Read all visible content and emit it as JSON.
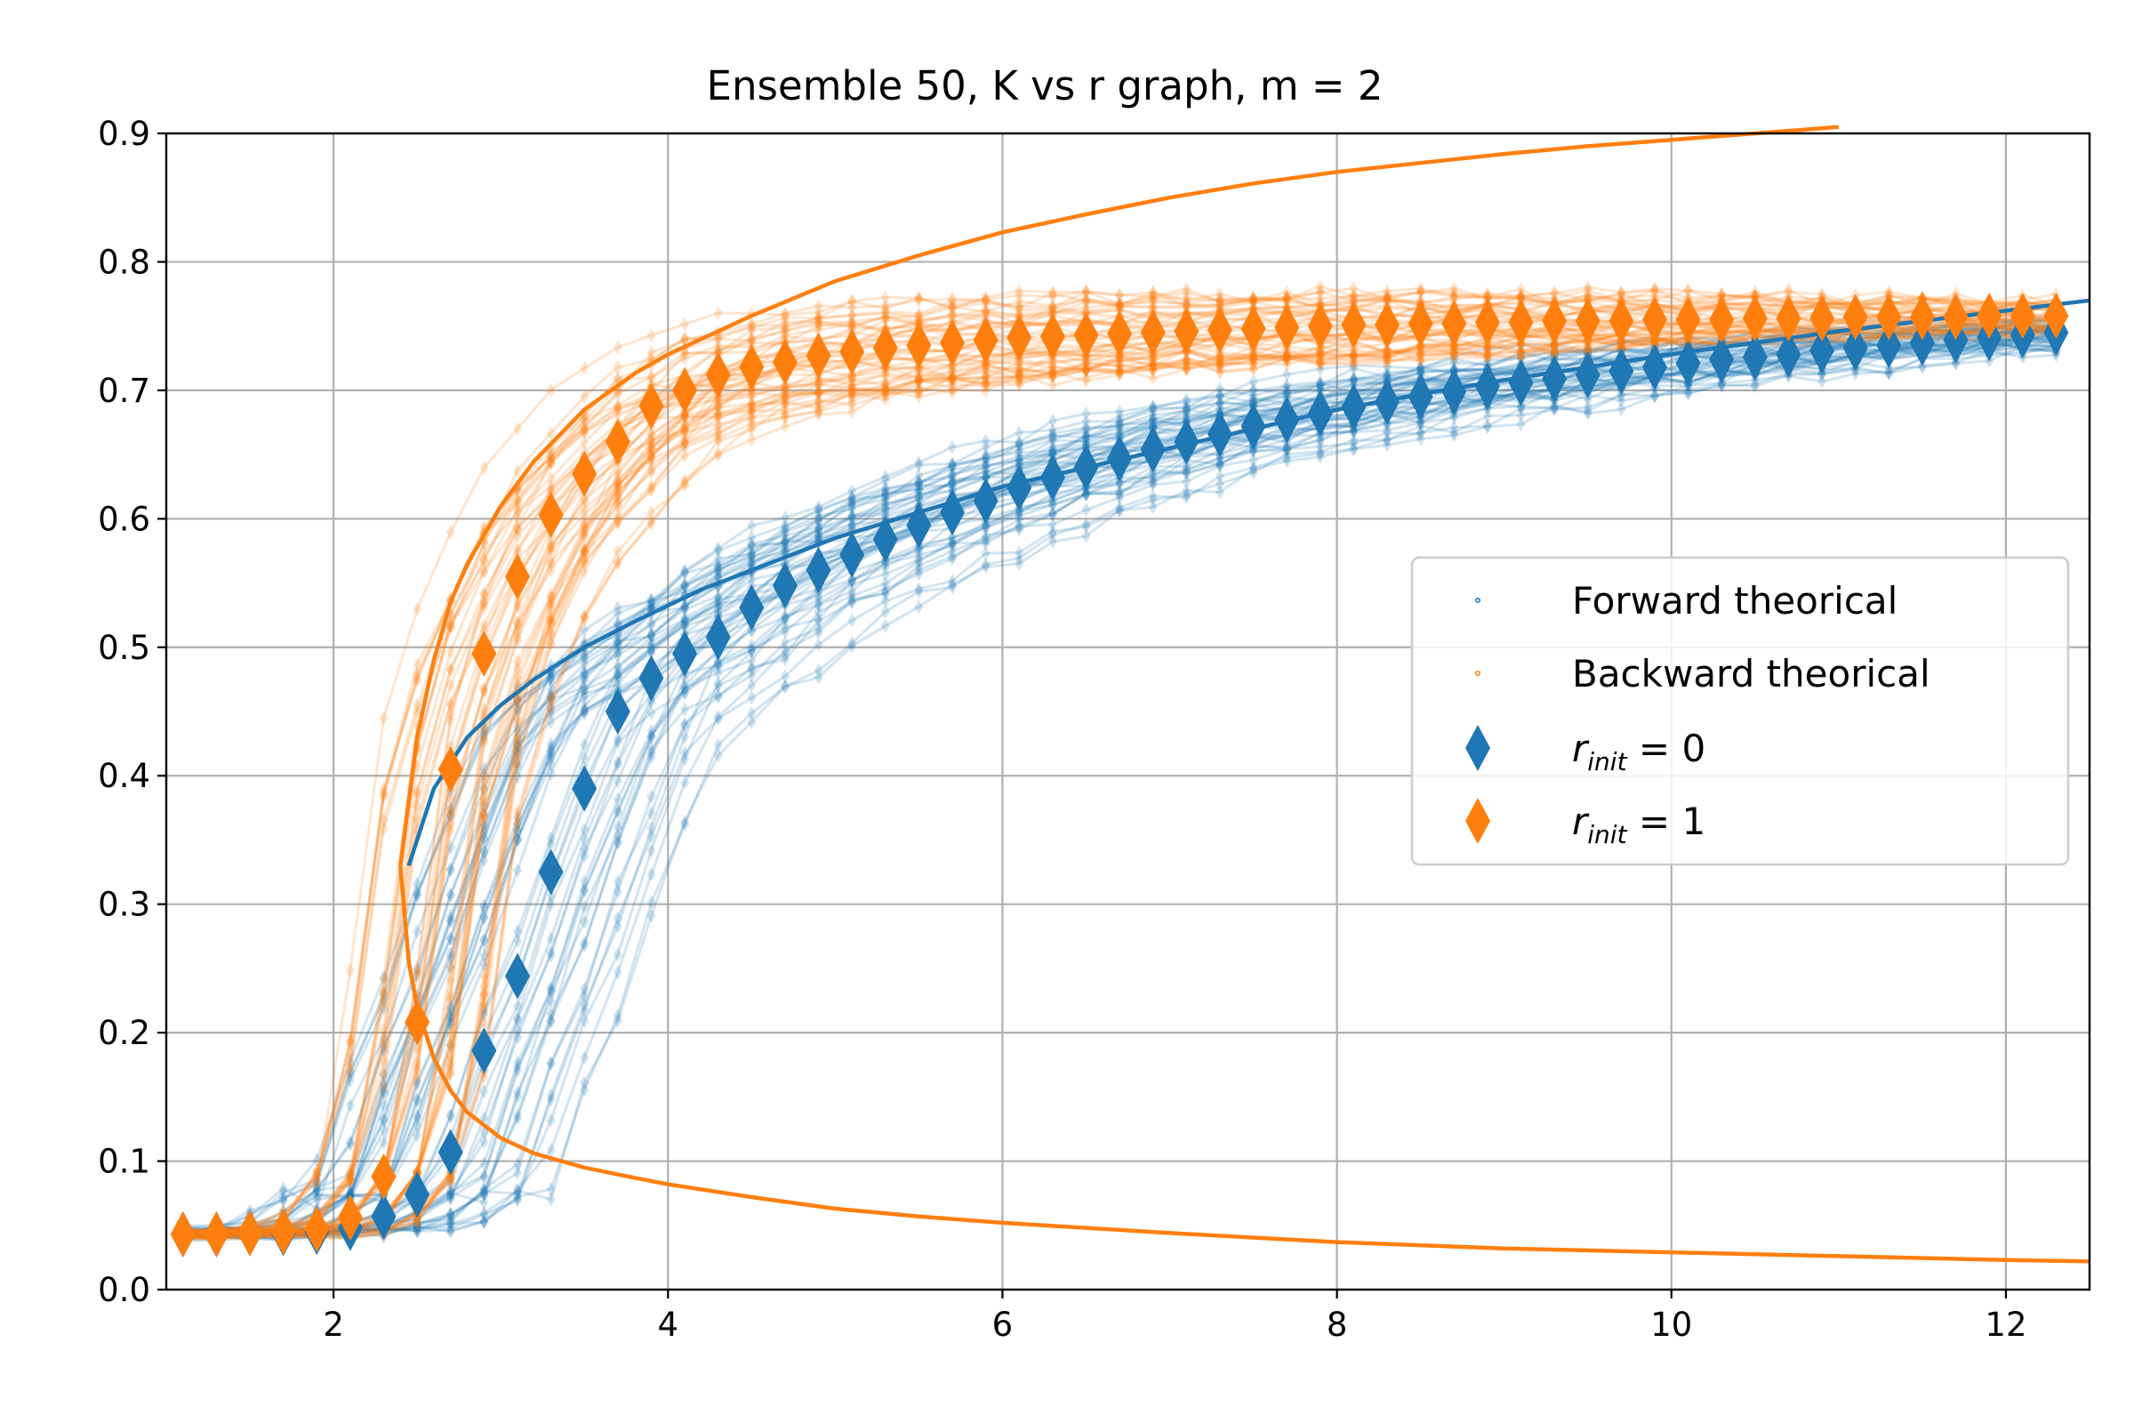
{
  "chart_data": {
    "type": "line",
    "title": "Ensemble 50, K vs r graph, m = 2",
    "xlabel": "",
    "ylabel": "",
    "xlim": [
      1,
      12.5
    ],
    "ylim": [
      0,
      0.9
    ],
    "xticks": [
      "2",
      "4",
      "6",
      "8",
      "10",
      "12"
    ],
    "yticks": [
      "0.0",
      "0.1",
      "0.2",
      "0.3",
      "0.4",
      "0.5",
      "0.6",
      "0.7",
      "0.8",
      "0.9"
    ],
    "grid": true,
    "legend_position": "center-right",
    "colors": {
      "forward": "#1f77b4",
      "backward": "#ff7f0e"
    },
    "legend": [
      {
        "label": "Forward theorical",
        "marker": "dot",
        "color": "#1f77b4"
      },
      {
        "label": "Backward theorical",
        "marker": "dot",
        "color": "#ff7f0e"
      },
      {
        "label_base": "r",
        "label_sub": "init",
        "label_tail": " = 0",
        "marker": "diamond",
        "color": "#1f77b4"
      },
      {
        "label_base": "r",
        "label_sub": "init",
        "label_tail": " = 1",
        "marker": "diamond",
        "color": "#ff7f0e"
      }
    ],
    "x": [
      1.1,
      1.3,
      1.5,
      1.7,
      1.9,
      2.1,
      2.3,
      2.5,
      2.7,
      2.9,
      3.1,
      3.3,
      3.5,
      3.7,
      3.9,
      4.1,
      4.3,
      4.5,
      4.7,
      4.9,
      5.1,
      5.3,
      5.5,
      5.7,
      5.9,
      6.1,
      6.3,
      6.5,
      6.7,
      6.9,
      7.1,
      7.3,
      7.5,
      7.7,
      7.9,
      8.1,
      8.3,
      8.5,
      8.7,
      8.9,
      9.1,
      9.3,
      9.5,
      9.7,
      9.9,
      10.1,
      10.3,
      10.5,
      10.7,
      10.9,
      11.1,
      11.3,
      11.5,
      11.7,
      11.9,
      12.1,
      12.3
    ],
    "series": [
      {
        "name": "r_init = 0",
        "color": "#1f77b4",
        "values": [
          0.043,
          0.043,
          0.044,
          0.044,
          0.045,
          0.048,
          0.057,
          0.074,
          0.107,
          0.186,
          0.244,
          0.325,
          0.39,
          0.45,
          0.476,
          0.495,
          0.508,
          0.531,
          0.548,
          0.56,
          0.572,
          0.584,
          0.595,
          0.605,
          0.614,
          0.624,
          0.632,
          0.64,
          0.647,
          0.654,
          0.66,
          0.666,
          0.672,
          0.677,
          0.682,
          0.687,
          0.691,
          0.695,
          0.699,
          0.703,
          0.706,
          0.709,
          0.712,
          0.715,
          0.718,
          0.721,
          0.724,
          0.726,
          0.728,
          0.731,
          0.733,
          0.735,
          0.737,
          0.739,
          0.741,
          0.743,
          0.745
        ]
      },
      {
        "name": "r_init = 1",
        "color": "#ff7f0e",
        "values": [
          0.043,
          0.043,
          0.044,
          0.045,
          0.047,
          0.056,
          0.088,
          0.208,
          0.405,
          0.495,
          0.555,
          0.603,
          0.635,
          0.66,
          0.688,
          0.7,
          0.712,
          0.718,
          0.722,
          0.727,
          0.73,
          0.733,
          0.735,
          0.737,
          0.739,
          0.741,
          0.742,
          0.743,
          0.744,
          0.745,
          0.746,
          0.747,
          0.748,
          0.749,
          0.75,
          0.751,
          0.751,
          0.752,
          0.752,
          0.753,
          0.753,
          0.754,
          0.754,
          0.754,
          0.755,
          0.755,
          0.755,
          0.756,
          0.756,
          0.756,
          0.757,
          0.757,
          0.757,
          0.757,
          0.758,
          0.758,
          0.758
        ]
      }
    ],
    "theory": {
      "forward_upper": {
        "name": "Forward theorical",
        "x": [
          2.45,
          2.6,
          2.8,
          3.0,
          3.2,
          3.5,
          3.8,
          4.2,
          4.6,
          5.0,
          5.5,
          6.0,
          6.5,
          7.0,
          7.5,
          8.0,
          8.5,
          9.0,
          9.5,
          10.0,
          10.5,
          11.0,
          11.5,
          12.0,
          12.5
        ],
        "y": [
          0.33,
          0.39,
          0.43,
          0.455,
          0.475,
          0.5,
          0.52,
          0.545,
          0.565,
          0.585,
          0.605,
          0.625,
          0.64,
          0.655,
          0.67,
          0.685,
          0.697,
          0.708,
          0.718,
          0.728,
          0.737,
          0.746,
          0.754,
          0.762,
          0.77
        ]
      },
      "backward_upper": {
        "name": "Backward theorical",
        "x": [
          2.4,
          2.5,
          2.6,
          2.7,
          2.8,
          3.0,
          3.2,
          3.5,
          3.8,
          4.0,
          4.5,
          5.0,
          5.5,
          6.0,
          6.5,
          7.0,
          7.5,
          8.0,
          8.5,
          9.0,
          9.5,
          10.0,
          10.5,
          11.0
        ],
        "y": [
          0.33,
          0.43,
          0.49,
          0.535,
          0.565,
          0.61,
          0.645,
          0.685,
          0.713,
          0.728,
          0.758,
          0.785,
          0.805,
          0.823,
          0.837,
          0.85,
          0.861,
          0.87,
          0.877,
          0.884,
          0.89,
          0.895,
          0.9,
          0.905
        ]
      },
      "backward_lower": {
        "name": "Backward theorical",
        "x": [
          2.4,
          2.45,
          2.5,
          2.6,
          2.7,
          2.8,
          3.0,
          3.2,
          3.5,
          3.8,
          4.0,
          4.5,
          5.0,
          5.5,
          6.0,
          7.0,
          8.0,
          9.0,
          10.0,
          11.0,
          12.0,
          12.5
        ],
        "y": [
          0.33,
          0.255,
          0.22,
          0.18,
          0.155,
          0.138,
          0.118,
          0.106,
          0.095,
          0.087,
          0.082,
          0.072,
          0.063,
          0.057,
          0.052,
          0.044,
          0.037,
          0.032,
          0.029,
          0.026,
          0.023,
          0.022
        ]
      }
    }
  }
}
